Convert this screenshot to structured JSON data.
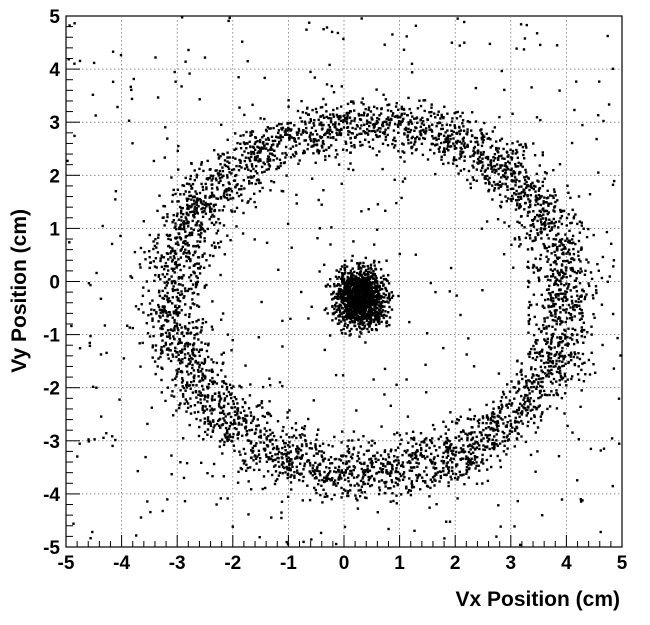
{
  "chart_data": {
    "type": "scatter",
    "title": "",
    "xlabel": "Vx Position (cm)",
    "ylabel": "Vy Position (cm)",
    "xlim": [
      -5,
      5
    ],
    "ylim": [
      -5,
      5
    ],
    "xticks": [
      "-5",
      "-4",
      "-3",
      "-2",
      "-1",
      "0",
      "1",
      "2",
      "3",
      "4",
      "5"
    ],
    "yticks": [
      "-5",
      "-4",
      "-3",
      "-2",
      "-1",
      "0",
      "1",
      "2",
      "3",
      "4",
      "5"
    ],
    "grid": true,
    "legend": "none",
    "marker_color": "#000000",
    "series": [
      {
        "components": [
          {
            "shape": "ring",
            "center": [
              0.45,
              -0.3
            ],
            "radius_x": 3.55,
            "radius_y": 3.3,
            "spread": 0.28,
            "count": 4200
          },
          {
            "shape": "cluster",
            "center": [
              0.3,
              -0.3
            ],
            "sigma_x": 0.22,
            "sigma_y": 0.25,
            "count": 1400
          },
          {
            "shape": "uniform_background",
            "count": 450
          }
        ]
      }
    ]
  }
}
